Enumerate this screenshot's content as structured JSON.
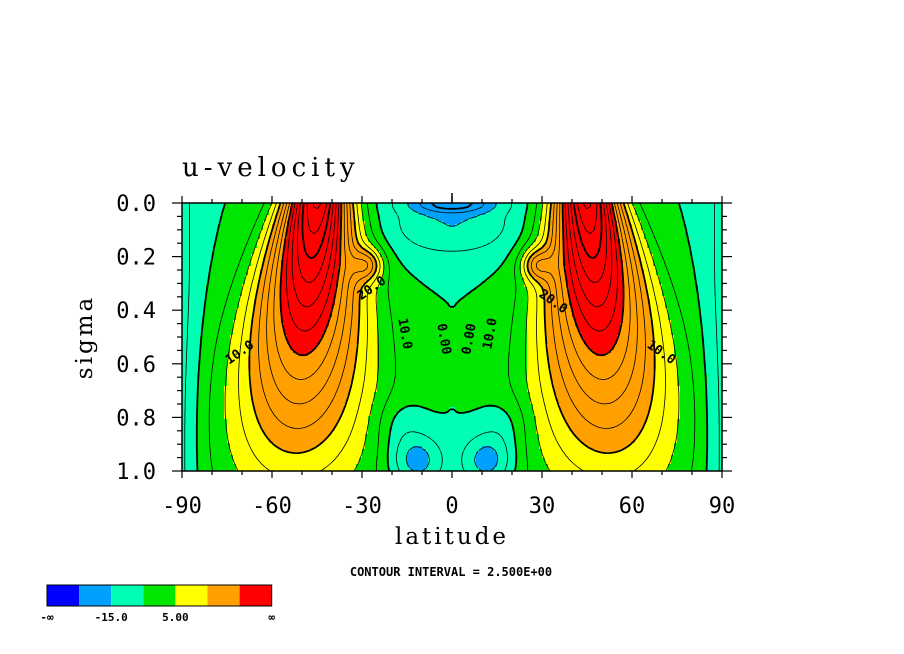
{
  "chart_data": {
    "type": "heatmap",
    "title": "u-velocity",
    "xlabel": "latitude",
    "ylabel": "sigma",
    "xlim": [
      -90,
      90
    ],
    "ylim": [
      1.0,
      0.0
    ],
    "x_ticks": [
      -90,
      -60,
      -30,
      0,
      30,
      60,
      90
    ],
    "x_tick_labels": [
      "-90",
      "-60",
      "-30",
      "0",
      "30",
      "60",
      "90"
    ],
    "y_ticks": [
      0.0,
      0.2,
      0.4,
      0.6,
      0.8,
      1.0
    ],
    "y_tick_labels": [
      "0.0",
      "0.2",
      "0.4",
      "0.6",
      "0.8",
      "1.0"
    ],
    "contour_interval_text": "CONTOUR INTERVAL = 2.500E+00",
    "contour_labels": [
      {
        "text": "20.0",
        "lat": -26,
        "sigma": 0.33
      },
      {
        "text": "10.0",
        "lat": -17,
        "sigma": 0.49
      },
      {
        "text": "10.0",
        "lat": -70,
        "sigma": 0.57
      },
      {
        "text": "0.00",
        "lat": -4,
        "sigma": 0.51
      },
      {
        "text": "0.00",
        "lat": 7,
        "sigma": 0.51
      },
      {
        "text": "10.0",
        "lat": 14,
        "sigma": 0.49
      },
      {
        "text": "20.0",
        "lat": 33,
        "sigma": 0.38
      },
      {
        "text": "10.0",
        "lat": 69,
        "sigma": 0.57
      }
    ],
    "jets": [
      {
        "lat": -55,
        "peak_sigma": 0.05,
        "max_u": 35
      },
      {
        "lat": 55,
        "peak_sigma": 0.05,
        "max_u": 35
      }
    ],
    "colorbar": {
      "colors": [
        "#0000ff",
        "#00a0ff",
        "#00ffb4",
        "#00e600",
        "#ffff00",
        "#ffa000",
        "#ff0000"
      ],
      "labels": [
        "-∞",
        "-15.0",
        "5.00",
        "∞"
      ]
    }
  }
}
